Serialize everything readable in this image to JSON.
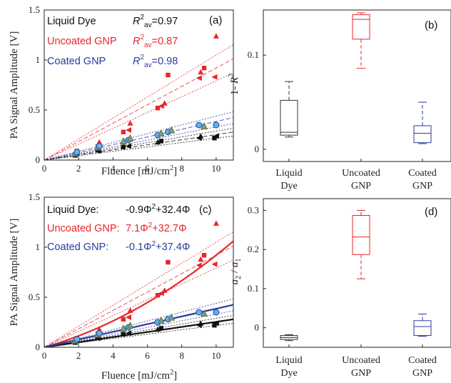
{
  "figure": {
    "charts": {
      "a": {
        "panel": "(a)",
        "xlabel": "Fluence [mJ/cm²]",
        "ylabel": "PA Signal Amplitude [V]",
        "xticks": [
          "0",
          "2",
          "4",
          "6",
          "8",
          "10"
        ],
        "yticks": [
          "0",
          "0.5",
          "1",
          "1.5"
        ],
        "legend": [
          {
            "name": "Liquid Dye",
            "fit": "R²av=0.97"
          },
          {
            "name": "Uncoated GNP",
            "fit": "R²av=0.87"
          },
          {
            "name": "Coated GNP",
            "fit": "R²av=0.98"
          }
        ]
      },
      "b": {
        "panel": "(b)",
        "ylabel": "1- R²",
        "yticks": [
          "0",
          "0.1"
        ],
        "categories": [
          "Liquid Dye",
          "Uncoated GNP",
          "Coated GNP"
        ]
      },
      "c": {
        "panel": "(c)",
        "xlabel": "Fluence [mJ/cm²]",
        "ylabel": "PA Signal Amplitude [V]",
        "xticks": [
          "0",
          "2",
          "4",
          "6",
          "8",
          "10"
        ],
        "yticks": [
          "0",
          "0.5",
          "1",
          "1.5"
        ],
        "legend": [
          {
            "name": "Liquid Dye:",
            "fit": "-0.9Φ²+32.4Φ"
          },
          {
            "name": "Uncoated GNP:",
            "fit": "7.1Φ²+32.7Φ"
          },
          {
            "name": "Coated GNP:",
            "fit": "-0.1Φ²+37.4Φ"
          }
        ]
      },
      "d": {
        "panel": "(d)",
        "ylabel": "a2 / a1",
        "yticks": [
          "0",
          "0.1",
          "0.2",
          "0.3"
        ],
        "categories": [
          "Liquid Dye",
          "Uncoated GNP",
          "Coated GNP"
        ]
      }
    }
  },
  "chart_data": [
    {
      "type": "scatter",
      "panel": "(a)",
      "xlabel": "Fluence [mJ/cm²]",
      "ylabel": "PA Signal Amplitude [V]",
      "xlim": [
        0,
        11
      ],
      "ylim": [
        0,
        1.5
      ],
      "colors": {
        "Liquid Dye": "#111111",
        "Uncoated GNP": "#e8262a",
        "Coated GNP": "#2b3c9e"
      },
      "series": [
        {
          "name": "Liquid Dye",
          "x": [
            1.8,
            1.9,
            3.1,
            3.2,
            4.6,
            4.9,
            6.6,
            6.8,
            9.0,
            9.1,
            9.9,
            10.0
          ],
          "y": [
            0.05,
            0.06,
            0.09,
            0.1,
            0.13,
            0.14,
            0.18,
            0.19,
            0.22,
            0.24,
            0.22,
            0.24
          ]
        },
        {
          "name": "Uncoated GNP",
          "x": [
            1.8,
            1.9,
            3.1,
            3.2,
            4.6,
            4.9,
            5.0,
            6.6,
            6.8,
            7.0,
            7.2,
            9.0,
            9.1,
            9.3,
            9.9,
            10.0
          ],
          "y": [
            0.08,
            0.09,
            0.15,
            0.18,
            0.28,
            0.3,
            0.37,
            0.52,
            0.54,
            0.57,
            0.85,
            0.82,
            0.88,
            0.92,
            0.83,
            1.24
          ]
        },
        {
          "name": "Coated GNP",
          "x": [
            1.8,
            1.9,
            3.1,
            3.2,
            4.6,
            4.9,
            5.0,
            6.6,
            6.8,
            7.2,
            7.4,
            9.0,
            9.3,
            10.0
          ],
          "y": [
            0.07,
            0.08,
            0.13,
            0.14,
            0.19,
            0.2,
            0.22,
            0.25,
            0.27,
            0.28,
            0.3,
            0.35,
            0.34,
            0.35
          ]
        }
      ],
      "legend": [
        "Liquid Dye: R²av=0.97",
        "Uncoated GNP: R²av=0.87",
        "Coated GNP: R²av=0.98"
      ]
    },
    {
      "type": "box",
      "panel": "(b)",
      "ylabel": "1- R²",
      "categories": [
        "Liquid Dye",
        "Uncoated GNP",
        "Coated GNP"
      ],
      "ylim": [
        -0.013,
        0.148
      ],
      "boxes": [
        {
          "category": "Liquid Dye",
          "whisker_low": 0.013,
          "q1": 0.015,
          "median": 0.018,
          "q3": 0.052,
          "whisker_high": 0.072
        },
        {
          "category": "Uncoated GNP",
          "whisker_low": 0.086,
          "q1": 0.117,
          "median": 0.138,
          "q3": 0.143,
          "whisker_high": 0.145
        },
        {
          "category": "Coated GNP",
          "whisker_low": 0.006,
          "q1": 0.007,
          "median": 0.017,
          "q3": 0.025,
          "whisker_high": 0.05
        }
      ]
    },
    {
      "type": "scatter",
      "panel": "(c)",
      "xlabel": "Fluence [mJ/cm²]",
      "ylabel": "PA Signal Amplitude [V]",
      "xlim": [
        0,
        11
      ],
      "ylim": [
        0,
        1.5
      ],
      "colors": {
        "Liquid Dye": "#111111",
        "Uncoated GNP": "#e8262a",
        "Coated GNP": "#2b3c9e"
      },
      "series": [
        {
          "name": "Liquid Dye",
          "x": [
            1.8,
            1.9,
            3.1,
            3.2,
            4.6,
            4.9,
            6.6,
            6.8,
            9.0,
            9.1,
            9.9,
            10.0
          ],
          "y": [
            0.05,
            0.06,
            0.09,
            0.1,
            0.13,
            0.14,
            0.18,
            0.19,
            0.22,
            0.24,
            0.22,
            0.24
          ]
        },
        {
          "name": "Uncoated GNP",
          "x": [
            1.8,
            1.9,
            3.1,
            3.2,
            4.6,
            4.9,
            5.0,
            6.6,
            6.8,
            7.0,
            7.2,
            9.0,
            9.1,
            9.3,
            9.9,
            10.0
          ],
          "y": [
            0.08,
            0.09,
            0.15,
            0.18,
            0.28,
            0.3,
            0.37,
            0.52,
            0.54,
            0.57,
            0.85,
            0.82,
            0.88,
            0.92,
            0.83,
            1.24
          ]
        },
        {
          "name": "Coated GNP",
          "x": [
            1.8,
            1.9,
            3.1,
            3.2,
            4.6,
            4.9,
            5.0,
            6.6,
            6.8,
            7.2,
            7.4,
            9.0,
            9.3,
            10.0
          ],
          "y": [
            0.07,
            0.08,
            0.13,
            0.14,
            0.19,
            0.2,
            0.22,
            0.25,
            0.27,
            0.28,
            0.3,
            0.35,
            0.34,
            0.35
          ]
        }
      ],
      "fits": [
        {
          "name": "Liquid Dye",
          "a2": -0.9,
          "a1": 32.4
        },
        {
          "name": "Uncoated GNP",
          "a2": 7.1,
          "a1": 32.7
        },
        {
          "name": "Coated GNP",
          "a2": -0.1,
          "a1": 37.4
        }
      ],
      "legend": [
        "Liquid Dye: -0.9Φ²+32.4Φ",
        "Uncoated GNP: 7.1Φ²+32.7Φ",
        "Coated GNP: -0.1Φ²+37.4Φ"
      ]
    },
    {
      "type": "box",
      "panel": "(d)",
      "ylabel": "a2 / a1",
      "categories": [
        "Liquid Dye",
        "Uncoated GNP",
        "Coated GNP"
      ],
      "ylim": [
        -0.05,
        0.33
      ],
      "boxes": [
        {
          "category": "Liquid Dye",
          "whisker_low": -0.033,
          "q1": -0.03,
          "median": -0.025,
          "q3": -0.02,
          "whisker_high": -0.018
        },
        {
          "category": "Uncoated GNP",
          "whisker_low": 0.125,
          "q1": 0.187,
          "median": 0.232,
          "q3": 0.287,
          "whisker_high": 0.3
        },
        {
          "category": "Coated GNP",
          "whisker_low": -0.022,
          "q1": -0.02,
          "median": 0.003,
          "q3": 0.018,
          "whisker_high": 0.035
        }
      ]
    }
  ]
}
